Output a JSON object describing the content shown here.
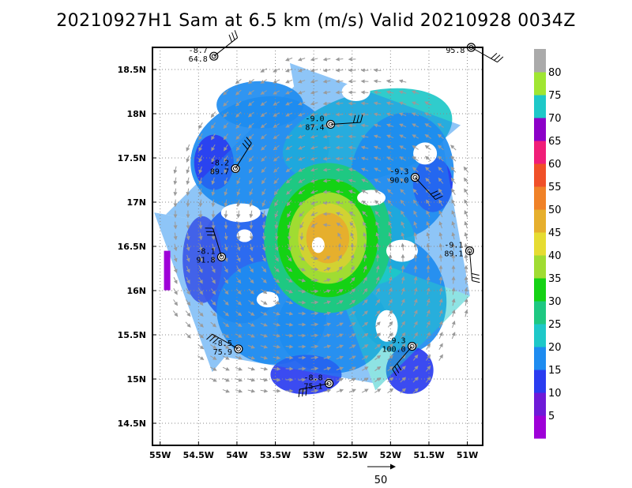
{
  "chart_data": {
    "type": "wind-field-map",
    "title": "20210927H1 Sam at 6.5 km (m/s) Valid 20210928 0034Z",
    "units": "m/s",
    "xlim": [
      -55.1,
      -50.8
    ],
    "ylim": [
      14.25,
      18.75
    ],
    "x_ticks": [
      {
        "value": -55.0,
        "label": "55W"
      },
      {
        "value": -54.5,
        "label": "54.5W"
      },
      {
        "value": -54.0,
        "label": "54W"
      },
      {
        "value": -53.5,
        "label": "53.5W"
      },
      {
        "value": -53.0,
        "label": "53W"
      },
      {
        "value": -52.5,
        "label": "52.5W"
      },
      {
        "value": -52.0,
        "label": "52W"
      },
      {
        "value": -51.5,
        "label": "51.5W"
      },
      {
        "value": -51.0,
        "label": "51W"
      }
    ],
    "y_ticks": [
      {
        "value": 18.5,
        "label": "18.5N"
      },
      {
        "value": 18.0,
        "label": "18N"
      },
      {
        "value": 17.5,
        "label": "17.5N"
      },
      {
        "value": 17.0,
        "label": "17N"
      },
      {
        "value": 16.5,
        "label": "16.5N"
      },
      {
        "value": 16.0,
        "label": "16N"
      },
      {
        "value": 15.5,
        "label": "15.5N"
      },
      {
        "value": 15.0,
        "label": "15N"
      },
      {
        "value": 14.5,
        "label": "14.5N"
      }
    ],
    "grid": true,
    "center": {
      "lon": -52.9,
      "lat": 16.55
    },
    "colorbar": [
      {
        "value": 5,
        "label": "5",
        "color": "#9e00d8"
      },
      {
        "value": 10,
        "label": "10",
        "color": "#6e1ad8"
      },
      {
        "value": 15,
        "label": "15",
        "color": "#2a3cf0"
      },
      {
        "value": 20,
        "label": "20",
        "color": "#1e8cf0"
      },
      {
        "value": 25,
        "label": "25",
        "color": "#1ec8c8"
      },
      {
        "value": 30,
        "label": "30",
        "color": "#1ec882"
      },
      {
        "value": 35,
        "label": "35",
        "color": "#14d214"
      },
      {
        "value": 40,
        "label": "40",
        "color": "#a0dc32"
      },
      {
        "value": 45,
        "label": "45",
        "color": "#e6dc32"
      },
      {
        "value": 50,
        "label": "50",
        "color": "#e6af2d"
      },
      {
        "value": 55,
        "label": "55",
        "color": "#f08228"
      },
      {
        "value": 60,
        "label": "60",
        "color": "#f05028"
      },
      {
        "value": 65,
        "label": "65",
        "color": "#f0468c"
      },
      {
        "value": 70,
        "label": "70",
        "color": "#e61496"
      },
      {
        "value": 75,
        "label": "75",
        "color": "#a01ebe"
      },
      {
        "value": 80,
        "label": "80",
        "color": "#1ec8c8"
      },
      {
        "value": 85,
        "label": "",
        "color": "#a0e632"
      }
    ],
    "colorbar_top_color": "#aaaaaa",
    "colorbar_ticks": [
      {
        "value": 5,
        "label": "5"
      },
      {
        "value": 15,
        "label": "10"
      },
      {
        "value": 25,
        "label": "15"
      },
      {
        "value": 35,
        "label": "20"
      },
      {
        "value": 45,
        "label": "25"
      },
      {
        "value": 55,
        "label": "30"
      },
      {
        "value": 65,
        "label": "35"
      },
      {
        "value": 75,
        "label": "40"
      },
      {
        "value": 85,
        "label": "45"
      },
      {
        "value": 95,
        "label": "50"
      },
      {
        "value": 105,
        "label": "55"
      },
      {
        "value": 115,
        "label": "60"
      },
      {
        "value": 125,
        "label": "65"
      },
      {
        "value": 135,
        "label": "70"
      },
      {
        "value": 145,
        "label": "75"
      },
      {
        "value": 155,
        "label": "80"
      }
    ],
    "colorbar_palette": [
      "#9e00d8",
      "#6e1ad8",
      "#2a3cf0",
      "#1e8cf0",
      "#1ec8c8",
      "#1ec882",
      "#14d214",
      "#a0dc32",
      "#e6dc32",
      "#e6af2d",
      "#f08228",
      "#f05028",
      "#f01e78",
      "#8c00c8",
      "#1ec8c8",
      "#a0e632",
      "#aaaaaa"
    ],
    "observations": [
      {
        "lon": -54.3,
        "lat": 18.65,
        "temp": "-8.7",
        "pres": "64.8"
      },
      {
        "lon": -50.95,
        "lat": 18.75,
        "temp": "",
        "pres": "95.8"
      },
      {
        "lon": -52.78,
        "lat": 17.88,
        "temp": "-9.0",
        "pres": "87.4"
      },
      {
        "lon": -54.02,
        "lat": 17.38,
        "temp": "-8.2",
        "pres": "89.7"
      },
      {
        "lon": -51.68,
        "lat": 17.28,
        "temp": "-9.3",
        "pres": "90.0"
      },
      {
        "lon": -50.97,
        "lat": 16.45,
        "temp": "-9.1",
        "pres": "89.1"
      },
      {
        "lon": -54.2,
        "lat": 16.38,
        "temp": "-8.1",
        "pres": "91.8"
      },
      {
        "lon": -51.72,
        "lat": 15.37,
        "temp": "-9.3",
        "pres": "100.0"
      },
      {
        "lon": -53.98,
        "lat": 15.34,
        "temp": "-8.5",
        "pres": "75.9"
      },
      {
        "lon": -52.8,
        "lat": 14.95,
        "temp": "-8.8",
        "pres": "75.1"
      }
    ],
    "scale_vector": {
      "value": "50"
    }
  }
}
